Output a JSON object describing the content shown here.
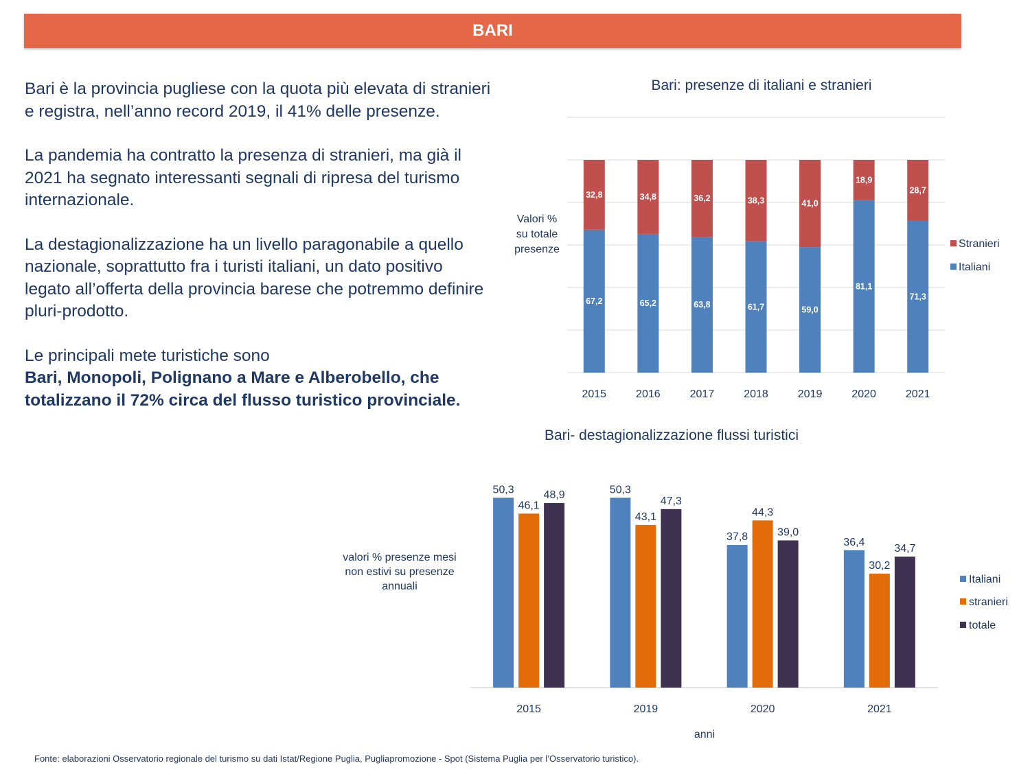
{
  "header": {
    "title": "BARI"
  },
  "body": {
    "paragraphs": [
      "Bari è la provincia pugliese con la quota più elevata di stranieri e registra, nell’anno record 2019, il 41% delle presenze.",
      "La pandemia ha contratto la presenza di stranieri, ma già il 2021 ha segnato interessanti segnali di ripresa del turismo internazionale.",
      "La destagionalizzazione ha un livello paragonabile a quello nazionale, soprattutto fra i turisti italiani, un dato positivo legato all’offerta della provincia barese che potremmo definire pluri-prodotto."
    ],
    "last_intro": "Le principali mete turistiche sono",
    "last_bold": "Bari, Monopoli, Polignano a Mare e Alberobello, che totalizzano il 72% circa del flusso turistico provinciale."
  },
  "source": "Fonte: elaborazioni Osservatorio regionale del turismo su dati Istat/Regione Puglia, Pugliapromozione - Spot (Sistema Puglia per l’Osservatorio turistico).",
  "chart_data": [
    {
      "type": "bar",
      "stacked": true,
      "title": "Bari: presenze di italiani e stranieri",
      "ylabel": "Valori % su totale presenze",
      "ylabel_lines": [
        "Valori %",
        "su totale",
        "presenze"
      ],
      "xlabel": "",
      "categories": [
        "2015",
        "2016",
        "2017",
        "2018",
        "2019",
        "2020",
        "2021"
      ],
      "series": [
        {
          "name": "Italiani",
          "color": "#4f81bd",
          "values": [
            67.2,
            65.2,
            63.8,
            61.7,
            59.0,
            81.1,
            71.3
          ],
          "labels": [
            "67,2",
            "65,2",
            "63,8",
            "61,7",
            "59,0",
            "81,1",
            "71,3"
          ]
        },
        {
          "name": "Stranieri",
          "color": "#c0504d",
          "values": [
            32.8,
            34.8,
            36.2,
            38.3,
            41.0,
            18.9,
            28.7
          ],
          "labels": [
            "32,8",
            "34,8",
            "36,2",
            "38,3",
            "41,0",
            "18,9",
            "28,7"
          ]
        }
      ],
      "ylim": [
        0,
        120
      ],
      "grid": true,
      "legend": "right"
    },
    {
      "type": "bar",
      "title": "Bari- destagionalizzazione flussi turistici",
      "ylabel": "valori % presenze mesi non estivi su presenze annuali",
      "ylabel_lines": [
        "valori % presenze mesi",
        "non estivi su presenze",
        "annuali"
      ],
      "xlabel": "anni",
      "categories": [
        "2015",
        "2019",
        "2020",
        "2021"
      ],
      "series": [
        {
          "name": "Italiani",
          "color": "#4f81bd",
          "values": [
            50.3,
            50.3,
            37.8,
            36.4
          ],
          "labels": [
            "50,3",
            "50,3",
            "37,8",
            "36,4"
          ]
        },
        {
          "name": "stranieri",
          "color": "#e36c09",
          "values": [
            46.1,
            43.1,
            44.3,
            30.2
          ],
          "labels": [
            "46,1",
            "43,1",
            "44,3",
            "30,2"
          ]
        },
        {
          "name": "totale",
          "color": "#3e3151",
          "values": [
            48.9,
            47.3,
            39.0,
            34.7
          ],
          "labels": [
            "48,9",
            "47,3",
            "39,0",
            "34,7"
          ]
        }
      ],
      "ylim": [
        0,
        60
      ],
      "grid": false,
      "legend": "right"
    }
  ]
}
